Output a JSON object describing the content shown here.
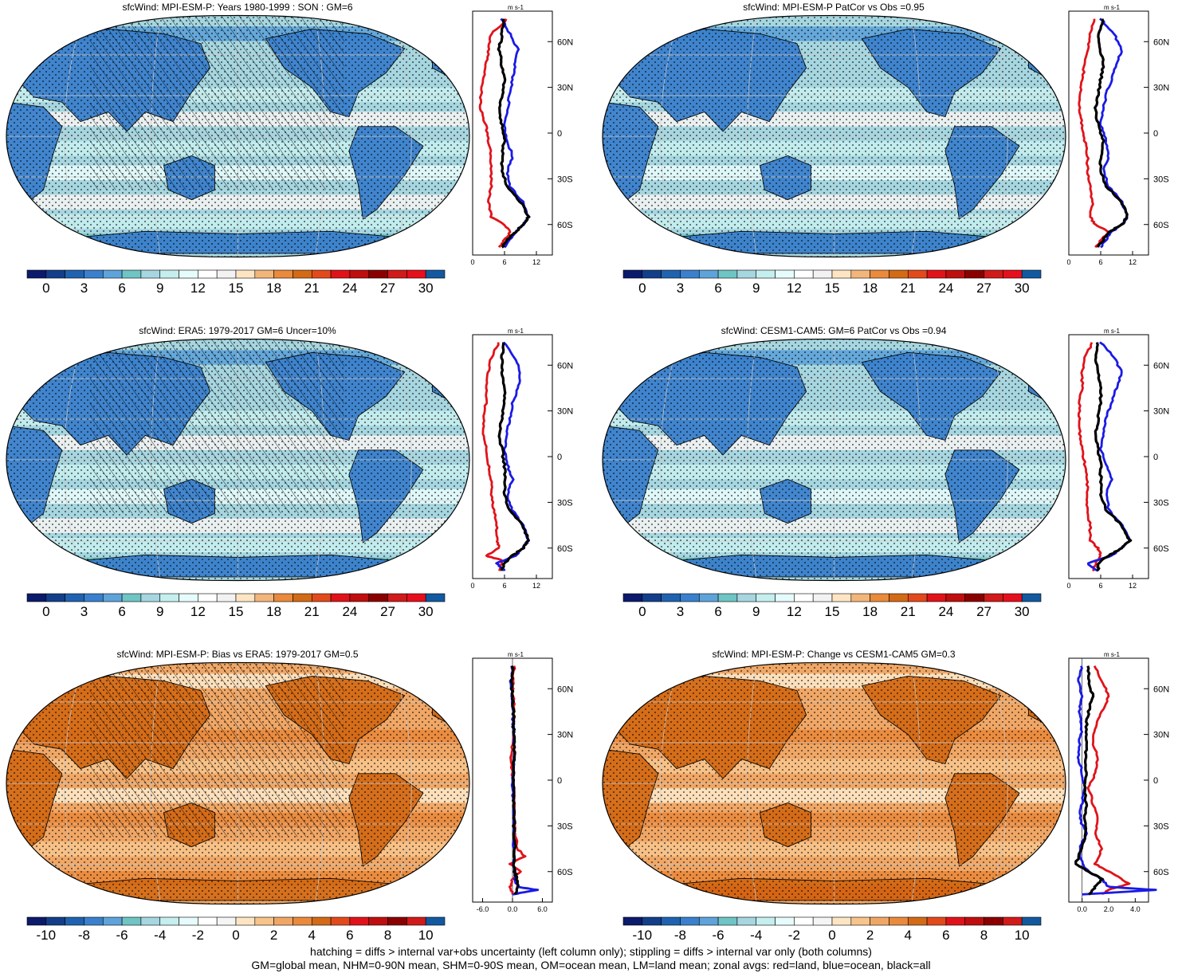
{
  "colors": {
    "scale_abs": [
      "#0b1a6b",
      "#133f8a",
      "#1f62b0",
      "#3a80cc",
      "#5ea3d9",
      "#6fc4c4",
      "#a6d6e0",
      "#c5eeee",
      "#e6fbfb",
      "#ffffff",
      "#f2f2f2",
      "#fde5c4",
      "#f2b57a",
      "#e98a3c",
      "#d36a16",
      "#e24a1c",
      "#e0131a",
      "#bf0e0e",
      "#8a0000",
      "#d11a1a",
      "#e60f1d",
      "#1259a0"
    ],
    "scale_diff": [
      "#0b1a6b",
      "#133f8a",
      "#1f62b0",
      "#3a80cc",
      "#5ea3d9",
      "#6fc4c4",
      "#a6d6e0",
      "#c5eeee",
      "#e6fbfb",
      "#ffffff",
      "#f5f5f5",
      "#fde5c4",
      "#f7c48b",
      "#f0a766",
      "#e98a3c",
      "#d36a16",
      "#e24a1c",
      "#e0131a",
      "#bf0e0e",
      "#8a0000",
      "#d11a1a",
      "#1259a0"
    ],
    "land_line": "#e0131a",
    "ocean_line": "#1a1ae6",
    "all_line": "#000000"
  },
  "footer": {
    "line1": "hatching = diffs > internal var+obs uncertainty (left column only); stippling = diffs > internal var only (both columns)",
    "line2": "GM=global mean, NHM=0-90N mean, SHM=0-90S mean, OM=ocean mean, LM=land mean; zonal avgs: red=land, blue=ocean, black=all"
  },
  "panels": [
    {
      "id": "mpi-clim",
      "title": "sfcWind: MPI-ESM-P: Years 1980-1999 : SON : GM=6",
      "map_style": "abs",
      "hatching": true,
      "colorbar_labels": [
        "0",
        "3",
        "6",
        "9",
        "12",
        "15",
        "18",
        "21",
        "24",
        "27",
        "30"
      ],
      "zonal": {
        "unit": "m s-1",
        "x_ticks": [
          "0",
          "6",
          "12"
        ],
        "xlim": [
          0,
          15
        ],
        "lat_ticks": [
          "60N",
          "30N",
          "0",
          "30S",
          "60S"
        ]
      }
    },
    {
      "id": "mpi-patcor",
      "title": "sfcWind: MPI-ESM-P PatCor vs Obs =0.95",
      "map_style": "abs",
      "hatching": false,
      "colorbar_labels": [
        "0",
        "3",
        "6",
        "9",
        "12",
        "15",
        "18",
        "21",
        "24",
        "27",
        "30"
      ],
      "zonal": {
        "unit": "m s-1",
        "x_ticks": [
          "0",
          "6",
          "12"
        ],
        "xlim": [
          0,
          15
        ],
        "lat_ticks": [
          "60N",
          "30N",
          "0",
          "30S",
          "60S"
        ]
      }
    },
    {
      "id": "era5",
      "title": "sfcWind: ERA5: 1979-2017 GM=6 Uncer=10%",
      "map_style": "abs",
      "hatching": true,
      "colorbar_labels": [
        "0",
        "3",
        "6",
        "9",
        "12",
        "15",
        "18",
        "21",
        "24",
        "27",
        "30"
      ],
      "zonal": {
        "unit": "m s-1",
        "x_ticks": [
          "0",
          "6",
          "12"
        ],
        "xlim": [
          0,
          15
        ],
        "lat_ticks": [
          "60N",
          "30N",
          "0",
          "30S",
          "60S"
        ]
      }
    },
    {
      "id": "cesm",
      "title": "sfcWind: CESM1-CAM5: GM=6 PatCor vs Obs =0.94",
      "map_style": "abs",
      "hatching": false,
      "colorbar_labels": [
        "0",
        "3",
        "6",
        "9",
        "12",
        "15",
        "18",
        "21",
        "24",
        "27",
        "30"
      ],
      "zonal": {
        "unit": "m s-1",
        "x_ticks": [
          "0",
          "6",
          "12"
        ],
        "xlim": [
          0,
          15
        ],
        "lat_ticks": [
          "60N",
          "30N",
          "0",
          "30S",
          "60S"
        ]
      }
    },
    {
      "id": "bias",
      "title": "sfcWind: MPI-ESM-P: Bias vs ERA5: 1979-2017  GM=0.5",
      "map_style": "diff",
      "hatching": true,
      "colorbar_labels": [
        "-10",
        "-8",
        "-6",
        "-4",
        "-2",
        "0",
        "2",
        "4",
        "6",
        "8",
        "10"
      ],
      "zonal": {
        "unit": "m s-1",
        "x_ticks": [
          "-6.0",
          "0.0",
          "6.0"
        ],
        "xlim": [
          -8,
          8
        ],
        "lat_ticks": [
          "60N",
          "30N",
          "0",
          "30S",
          "60S"
        ]
      }
    },
    {
      "id": "change",
      "title": "sfcWind: MPI-ESM-P: Change vs CESM1-CAM5 GM=0.3",
      "map_style": "diff",
      "hatching": false,
      "colorbar_labels": [
        "-10",
        "-8",
        "-6",
        "-4",
        "-2",
        "0",
        "2",
        "4",
        "6",
        "8",
        "10"
      ],
      "zonal": {
        "unit": "m s-1",
        "x_ticks": [
          "0.0",
          "2.0",
          "4.0"
        ],
        "xlim": [
          -1,
          5
        ],
        "lat_ticks": [
          "60N",
          "30N",
          "0",
          "30S",
          "60S"
        ]
      }
    }
  ],
  "chart_data": [
    {
      "type": "line",
      "title": "sfcWind: MPI-ESM-P: Years 1980-1999 : SON : GM=6",
      "ylabel": "",
      "xlabel": "m s-1",
      "xlim": [
        0,
        15
      ],
      "ylim": [
        -80,
        80
      ],
      "series": [
        {
          "color": "#e0131a",
          "lat": [
            75,
            65,
            55,
            45,
            35,
            25,
            15,
            5,
            -5,
            -15,
            -25,
            -35,
            -45,
            -55,
            -60,
            -65,
            -70,
            -75
          ],
          "values": [
            6.5,
            3.5,
            3.0,
            2.5,
            2.0,
            1.5,
            1.5,
            2.5,
            3.0,
            3.5,
            3.5,
            3.5,
            3.0,
            3.5,
            6.0,
            7.0,
            6.0,
            5.0
          ]
        },
        {
          "color": "#1a1ae6",
          "lat": [
            75,
            65,
            55,
            45,
            35,
            25,
            15,
            5,
            -5,
            -15,
            -25,
            -35,
            -45,
            -55,
            -60,
            -65,
            -70,
            -75
          ],
          "values": [
            5.5,
            7.0,
            8.5,
            8.0,
            7.5,
            7.0,
            6.5,
            6.0,
            6.5,
            7.5,
            6.5,
            7.0,
            9.5,
            10.5,
            9.5,
            8.0,
            7.0,
            6.0
          ]
        },
        {
          "color": "#000000",
          "lat": [
            75,
            65,
            55,
            45,
            35,
            25,
            15,
            5,
            -5,
            -15,
            -25,
            -35,
            -45,
            -55,
            -60,
            -65,
            -70,
            -75
          ],
          "values": [
            6.0,
            5.5,
            5.0,
            5.5,
            6.0,
            5.5,
            5.0,
            5.5,
            6.0,
            5.5,
            5.5,
            6.5,
            9.0,
            10.5,
            9.5,
            8.0,
            6.5,
            5.5
          ]
        }
      ]
    },
    {
      "type": "line",
      "title": "sfcWind: MPI-ESM-P PatCor vs Obs =0.95",
      "ylabel": "",
      "xlabel": "m s-1",
      "xlim": [
        0,
        15
      ],
      "ylim": [
        -80,
        80
      ],
      "series": [
        {
          "color": "#e0131a",
          "lat": [
            75,
            65,
            55,
            45,
            35,
            25,
            15,
            5,
            -5,
            -15,
            -25,
            -35,
            -45,
            -55,
            -60,
            -65,
            -70,
            -75
          ],
          "values": [
            5.0,
            4.0,
            3.5,
            3.0,
            2.5,
            2.0,
            2.0,
            2.5,
            3.0,
            3.5,
            3.5,
            4.0,
            4.5,
            4.0,
            5.0,
            7.5,
            6.0,
            5.0
          ]
        },
        {
          "color": "#1a1ae6",
          "lat": [
            75,
            65,
            55,
            45,
            35,
            25,
            15,
            5,
            -5,
            -15,
            -25,
            -35,
            -45,
            -55,
            -60,
            -65,
            -70,
            -75
          ],
          "values": [
            6.0,
            8.5,
            10.0,
            9.0,
            8.0,
            7.0,
            6.5,
            6.0,
            7.0,
            7.5,
            6.5,
            7.5,
            10.0,
            11.0,
            10.0,
            8.0,
            7.0,
            6.0
          ]
        },
        {
          "color": "#000000",
          "lat": [
            75,
            65,
            55,
            45,
            35,
            25,
            15,
            5,
            -5,
            -15,
            -25,
            -35,
            -45,
            -55,
            -60,
            -65,
            -70,
            -75
          ],
          "values": [
            6.5,
            5.5,
            6.0,
            6.5,
            6.0,
            5.5,
            5.0,
            5.5,
            6.5,
            6.0,
            6.0,
            7.0,
            10.0,
            11.0,
            10.0,
            7.5,
            6.5,
            5.5
          ]
        }
      ]
    },
    {
      "type": "line",
      "title": "sfcWind: ERA5: 1979-2017 GM=6 Uncer=10%",
      "ylabel": "",
      "xlabel": "m s-1",
      "xlim": [
        0,
        15
      ],
      "ylim": [
        -80,
        80
      ],
      "series": [
        {
          "color": "#e0131a",
          "lat": [
            75,
            65,
            55,
            45,
            35,
            25,
            15,
            5,
            -5,
            -15,
            -25,
            -35,
            -45,
            -55,
            -60,
            -65,
            -68,
            -75
          ],
          "values": [
            5.0,
            3.5,
            3.0,
            2.5,
            2.5,
            2.0,
            2.0,
            2.5,
            3.0,
            3.5,
            3.5,
            4.0,
            4.5,
            4.5,
            5.0,
            2.5,
            5.5,
            5.0
          ]
        },
        {
          "color": "#1a1ae6",
          "lat": [
            75,
            65,
            55,
            45,
            35,
            25,
            15,
            5,
            -5,
            -15,
            -25,
            -35,
            -45,
            -55,
            -60,
            -65,
            -70,
            -75
          ],
          "values": [
            6.0,
            8.0,
            9.0,
            8.5,
            7.5,
            7.0,
            6.5,
            6.0,
            6.5,
            7.5,
            6.5,
            7.5,
            9.5,
            10.5,
            9.5,
            8.0,
            4.5,
            6.0
          ]
        },
        {
          "color": "#000000",
          "lat": [
            75,
            65,
            55,
            45,
            35,
            25,
            15,
            5,
            -5,
            -15,
            -25,
            -35,
            -45,
            -55,
            -60,
            -65,
            -70,
            -75
          ],
          "values": [
            6.0,
            5.5,
            5.5,
            6.0,
            6.0,
            5.5,
            5.0,
            5.5,
            6.0,
            6.0,
            6.0,
            7.0,
            9.5,
            10.5,
            9.5,
            7.5,
            6.0,
            5.5
          ]
        }
      ]
    },
    {
      "type": "line",
      "title": "sfcWind: CESM1-CAM5: GM=6 PatCor vs Obs =0.94",
      "ylabel": "",
      "xlabel": "m s-1",
      "xlim": [
        0,
        15
      ],
      "ylim": [
        -80,
        80
      ],
      "series": [
        {
          "color": "#e0131a",
          "lat": [
            75,
            65,
            55,
            45,
            35,
            25,
            15,
            5,
            -5,
            -15,
            -25,
            -35,
            -45,
            -55,
            -60,
            -65,
            -70,
            -75
          ],
          "values": [
            4.5,
            3.0,
            2.5,
            2.5,
            2.0,
            2.0,
            2.0,
            2.5,
            3.0,
            3.5,
            3.5,
            3.5,
            4.0,
            4.0,
            5.5,
            6.0,
            5.0,
            4.5
          ]
        },
        {
          "color": "#1a1ae6",
          "lat": [
            75,
            65,
            55,
            45,
            35,
            25,
            15,
            5,
            -5,
            -15,
            -25,
            -35,
            -45,
            -55,
            -60,
            -65,
            -70,
            -75
          ],
          "values": [
            6.0,
            8.5,
            10.0,
            9.0,
            8.0,
            7.0,
            6.5,
            6.0,
            7.0,
            8.0,
            7.0,
            7.5,
            10.0,
            11.5,
            10.0,
            8.0,
            3.5,
            5.5
          ]
        },
        {
          "color": "#000000",
          "lat": [
            75,
            65,
            55,
            45,
            35,
            25,
            15,
            5,
            -5,
            -15,
            -25,
            -35,
            -45,
            -55,
            -60,
            -65,
            -70,
            -75
          ],
          "values": [
            5.5,
            5.0,
            5.5,
            6.0,
            6.0,
            5.5,
            5.0,
            5.5,
            6.0,
            6.0,
            6.0,
            7.0,
            10.0,
            11.5,
            10.0,
            7.5,
            5.5,
            5.5
          ]
        }
      ]
    },
    {
      "type": "line",
      "title": "sfcWind: MPI-ESM-P: Bias vs ERA5: 1979-2017  GM=0.5",
      "ylabel": "",
      "xlabel": "m s-1",
      "xlim": [
        -8,
        8
      ],
      "ylim": [
        -80,
        80
      ],
      "series": [
        {
          "color": "#e0131a",
          "lat": [
            75,
            65,
            55,
            45,
            35,
            25,
            15,
            5,
            -5,
            -15,
            -25,
            -35,
            -45,
            -50,
            -55,
            -60,
            -65,
            -70,
            -75
          ],
          "values": [
            0.5,
            0.0,
            0.2,
            0.3,
            0.2,
            0.0,
            -0.3,
            0.0,
            0.2,
            0.5,
            0.2,
            0.5,
            1.0,
            2.5,
            -0.5,
            1.5,
            0.0,
            -0.5,
            0.0
          ]
        },
        {
          "color": "#1a1ae6",
          "lat": [
            75,
            65,
            55,
            45,
            35,
            25,
            15,
            5,
            -5,
            -15,
            -25,
            -35,
            -45,
            -55,
            -60,
            -65,
            -70,
            -72,
            -75
          ],
          "values": [
            0.0,
            -0.3,
            -0.2,
            0.0,
            0.2,
            0.3,
            0.5,
            0.2,
            0.0,
            0.2,
            0.3,
            0.2,
            0.3,
            0.2,
            0.5,
            0.5,
            1.0,
            5.0,
            0.0
          ]
        },
        {
          "color": "#000000",
          "lat": [
            75,
            65,
            55,
            45,
            35,
            25,
            15,
            5,
            -5,
            -15,
            -25,
            -35,
            -45,
            -55,
            -60,
            -65,
            -70,
            -75
          ],
          "values": [
            0.0,
            -0.2,
            0.0,
            0.2,
            0.2,
            0.3,
            0.3,
            0.2,
            0.2,
            0.3,
            0.3,
            0.3,
            0.5,
            0.3,
            0.5,
            0.8,
            1.0,
            0.5
          ]
        }
      ]
    },
    {
      "type": "line",
      "title": "sfcWind: MPI-ESM-P: Change vs CESM1-CAM5 GM=0.3",
      "ylabel": "",
      "xlabel": "m s-1",
      "xlim": [
        -1,
        5
      ],
      "ylim": [
        -80,
        80
      ],
      "series": [
        {
          "color": "#e0131a",
          "lat": [
            75,
            65,
            55,
            45,
            35,
            25,
            15,
            5,
            -5,
            -15,
            -25,
            -35,
            -45,
            -55,
            -60,
            -65,
            -68,
            -72,
            -75
          ],
          "values": [
            1.0,
            1.5,
            2.0,
            1.5,
            1.0,
            0.8,
            1.2,
            1.0,
            0.5,
            0.8,
            1.2,
            1.0,
            1.5,
            1.0,
            2.0,
            3.0,
            3.5,
            2.0,
            1.5
          ]
        },
        {
          "color": "#1a1ae6",
          "lat": [
            75,
            65,
            55,
            45,
            35,
            25,
            15,
            5,
            -5,
            -15,
            -25,
            -35,
            -45,
            -55,
            -60,
            -65,
            -70,
            -72,
            -75
          ],
          "values": [
            0.0,
            -0.3,
            0.0,
            -0.2,
            0.0,
            -0.2,
            -0.3,
            0.0,
            0.2,
            0.0,
            -0.2,
            0.3,
            -0.2,
            0.0,
            0.5,
            1.5,
            2.0,
            5.5,
            0.0
          ]
        },
        {
          "color": "#000000",
          "lat": [
            75,
            65,
            55,
            45,
            35,
            25,
            15,
            5,
            -5,
            -15,
            -25,
            -35,
            -45,
            -55,
            -60,
            -65,
            -70,
            -75
          ],
          "values": [
            0.5,
            0.5,
            0.8,
            0.5,
            0.3,
            0.3,
            0.3,
            0.3,
            0.2,
            0.3,
            0.2,
            0.3,
            0.0,
            -0.5,
            0.5,
            1.5,
            1.0,
            0.5
          ]
        }
      ]
    }
  ]
}
